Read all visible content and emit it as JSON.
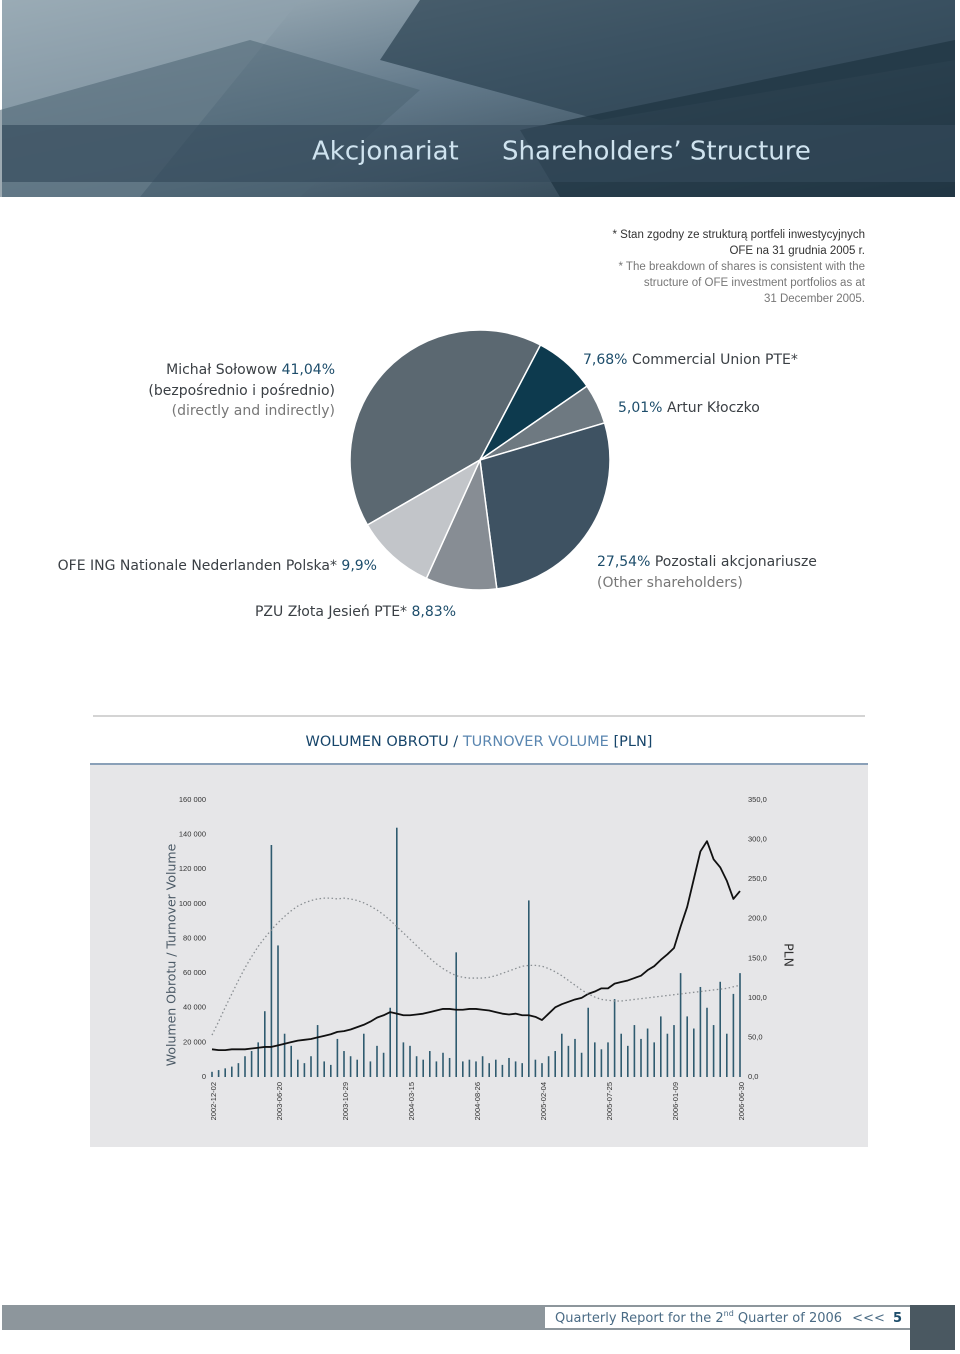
{
  "header": {
    "title_pl": "Akcjonariat",
    "title_en": "Shareholders’ Structure"
  },
  "note": {
    "lines": [
      "* Stan zgodny ze strukturą portfeli inwestycyjnych",
      "OFE na 31 grudnia 2005 r.",
      "* The breakdown of shares is consistent with the",
      "structure of OFE investment portfolios as at",
      "31 December 2005."
    ]
  },
  "chart_data": [
    {
      "type": "pie",
      "categories": [
        "Michał Sołowow",
        "Commercial Union PTE*",
        "Artur Kłoczko",
        "Pozostali akcjonariusze",
        "PZU Złota Jesień PTE*",
        "OFE ING Nationale Nederlanden Polska*"
      ],
      "values": [
        41.04,
        7.68,
        5.01,
        27.54,
        8.83,
        9.9
      ],
      "value_labels": [
        "41,04%",
        "7,68%",
        "5,01%",
        "27,54%",
        "8,83%",
        "9,9%"
      ],
      "colors": [
        "#5b6871",
        "#0d3a4e",
        "#6e7981",
        "#3e5262",
        "#878d94",
        "#c2c5c9"
      ],
      "annotations": [
        "(bezpośrednio i pośrednio)",
        "(directly and indirectly)",
        "(Other shareholders)"
      ]
    },
    {
      "type": "combo",
      "title": [
        "WOLUMEN OBROTU /",
        "TURNOVER VOLUME",
        "[PLN]"
      ],
      "y_label": "Wolumen Obrotu / Turnover Volume",
      "y2_label": "PLN",
      "categories": [
        "2002-12-02",
        null,
        null,
        null,
        null,
        null,
        null,
        null,
        null,
        null,
        "2003-06-20",
        null,
        null,
        null,
        null,
        null,
        null,
        null,
        null,
        null,
        "2003-10-29",
        null,
        null,
        null,
        null,
        null,
        null,
        null,
        null,
        null,
        "2004-03-15",
        null,
        null,
        null,
        null,
        null,
        null,
        null,
        null,
        null,
        "2004-08-26",
        null,
        null,
        null,
        null,
        null,
        null,
        null,
        null,
        null,
        "2005-02-04",
        null,
        null,
        null,
        null,
        null,
        null,
        null,
        null,
        null,
        "2005-07-25",
        null,
        null,
        null,
        null,
        null,
        null,
        null,
        null,
        null,
        "2006-01-09",
        null,
        null,
        null,
        null,
        null,
        null,
        null,
        null,
        null,
        "2006-06-30"
      ],
      "series": [
        {
          "type": "bar",
          "color": "#2f5b6f",
          "values": [
            3000,
            4000,
            5000,
            6000,
            8000,
            12000,
            15000,
            20000,
            38000,
            134000,
            76000,
            25000,
            18000,
            10000,
            8000,
            12000,
            30000,
            9000,
            7000,
            22000,
            15000,
            12000,
            10000,
            25000,
            9000,
            18000,
            14000,
            40000,
            144000,
            20000,
            18000,
            12000,
            10000,
            15000,
            9000,
            14000,
            11000,
            72000,
            9000,
            10000,
            9000,
            12000,
            8000,
            10000,
            7000,
            11000,
            9000,
            8000,
            102000,
            10000,
            8000,
            12000,
            15000,
            25000,
            18000,
            22000,
            14000,
            40000,
            20000,
            16000,
            20000,
            45000,
            25000,
            18000,
            30000,
            22000,
            28000,
            20000,
            35000,
            25000,
            30000,
            60000,
            35000,
            28000,
            52000,
            40000,
            30000,
            55000,
            25000,
            48000,
            60000
          ]
        },
        {
          "type": "line",
          "axis": "y2",
          "color": "#111111",
          "values": [
            35,
            34,
            34,
            35,
            35,
            35,
            36,
            37,
            38,
            38,
            40,
            42,
            44,
            46,
            47,
            48,
            50,
            52,
            54,
            57,
            58,
            60,
            63,
            66,
            70,
            75,
            78,
            82,
            80,
            78,
            78,
            79,
            80,
            82,
            84,
            86,
            86,
            85,
            85,
            86,
            86,
            85,
            84,
            82,
            80,
            79,
            80,
            78,
            78,
            76,
            72,
            80,
            88,
            92,
            95,
            98,
            100,
            105,
            108,
            112,
            112,
            118,
            120,
            122,
            125,
            128,
            135,
            140,
            148,
            155,
            163,
            190,
            215,
            250,
            285,
            298,
            275,
            265,
            248,
            225,
            235
          ]
        },
        {
          "type": "line",
          "axis": "y2",
          "color": "#8a8f93",
          "dash": "dotted",
          "values": [
            53,
            70,
            88,
            105,
            122,
            138,
            152,
            165,
            176,
            186,
            195,
            203,
            210,
            216,
            220,
            223,
            225,
            226,
            226,
            225,
            226,
            225,
            223,
            220,
            216,
            211,
            205,
            198,
            190,
            182,
            174,
            166,
            158,
            150,
            143,
            137,
            132,
            128,
            126,
            125,
            125,
            125,
            126,
            128,
            131,
            134,
            137,
            140,
            141,
            141,
            140,
            137,
            133,
            128,
            122,
            116,
            110,
            105,
            101,
            98,
            97,
            96,
            96,
            97,
            98,
            99,
            100,
            101,
            102,
            103,
            104,
            105,
            106,
            107,
            108,
            109,
            110,
            111,
            112,
            114,
            116
          ]
        }
      ],
      "ylim": [
        0,
        160000
      ],
      "yticks": [
        0,
        {
          "value": 20000,
          "label": "20 000"
        },
        {
          "value": 40000,
          "label": "40 000"
        },
        {
          "value": 60000,
          "label": "60 000"
        },
        {
          "value": 80000,
          "label": "80 000"
        },
        {
          "value": 100000,
          "label": "100 000"
        },
        {
          "value": 120000,
          "label": "120 000"
        },
        {
          "value": 140000,
          "label": "140 000"
        },
        {
          "value": 160000,
          "label": "160 000"
        }
      ],
      "y2lim": [
        0,
        350
      ],
      "y2ticks": [
        {
          "value": 0,
          "label": "0,0"
        },
        {
          "value": 50,
          "label": "50,0"
        },
        {
          "value": 100,
          "label": "100,0"
        },
        {
          "value": 150,
          "label": "150,0"
        },
        {
          "value": 200,
          "label": "200,0"
        },
        {
          "value": 250,
          "label": "250,0"
        },
        {
          "value": 300,
          "label": "300,0"
        },
        {
          "value": 350,
          "label": "350,0"
        }
      ]
    }
  ],
  "footer": {
    "parts": [
      "Quarterly Report for the 2",
      "nd",
      " Quarter of 2006",
      "<<<",
      "5"
    ]
  }
}
